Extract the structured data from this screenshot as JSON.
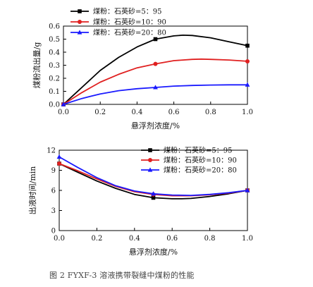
{
  "figure_caption": "图 2    FYXF-3 溶液携带裂缝中煤粉的性能",
  "chart_data": [
    {
      "type": "line",
      "title": "",
      "xlabel": "悬浮剂浓度/%",
      "ylabel": "煤粉流出量/g",
      "xlim": [
        0.0,
        1.0
      ],
      "ylim": [
        0.0,
        0.6
      ],
      "xticks": [
        "0.0",
        "0.2",
        "0.4",
        "0.6",
        "0.8",
        "1.0"
      ],
      "yticks": [
        "0.0",
        "0.1",
        "0.2",
        "0.3",
        "0.4",
        "0.5",
        "0.6"
      ],
      "legend_position": "top-left",
      "grid": false,
      "series": [
        {
          "name": "煤粉：石英砂=5：95",
          "color": "#000000",
          "marker": "square",
          "x": [
            0.0,
            0.5,
            1.0
          ],
          "y": [
            0.0,
            0.5,
            0.45
          ],
          "curve": {
            "x": [
              0,
              0.1,
              0.2,
              0.3,
              0.4,
              0.5,
              0.6,
              0.65,
              0.7,
              0.8,
              0.9,
              1.0
            ],
            "y": [
              0,
              0.13,
              0.26,
              0.36,
              0.44,
              0.5,
              0.525,
              0.53,
              0.528,
              0.51,
              0.48,
              0.45
            ]
          }
        },
        {
          "name": "煤粉：石英砂=10：90",
          "color": "#e02020",
          "marker": "circle",
          "x": [
            0.0,
            0.5,
            1.0
          ],
          "y": [
            0.0,
            0.31,
            0.33
          ],
          "curve": {
            "x": [
              0,
              0.1,
              0.2,
              0.3,
              0.4,
              0.5,
              0.6,
              0.7,
              0.75,
              0.8,
              0.9,
              1.0
            ],
            "y": [
              0,
              0.09,
              0.17,
              0.23,
              0.28,
              0.31,
              0.335,
              0.345,
              0.347,
              0.345,
              0.34,
              0.33
            ]
          }
        },
        {
          "name": "煤粉：石英砂=20：80",
          "color": "#1a1aff",
          "marker": "triangle",
          "x": [
            0.0,
            0.5,
            1.0
          ],
          "y": [
            0.0,
            0.13,
            0.15
          ],
          "curve": {
            "x": [
              0,
              0.1,
              0.2,
              0.3,
              0.4,
              0.5,
              0.6,
              0.7,
              0.8,
              0.9,
              1.0
            ],
            "y": [
              0,
              0.045,
              0.08,
              0.105,
              0.12,
              0.13,
              0.14,
              0.145,
              0.148,
              0.15,
              0.15
            ]
          }
        }
      ]
    },
    {
      "type": "line",
      "title": "",
      "xlabel": "悬浮剂浓度/%",
      "ylabel": "出液时间/min",
      "xlim": [
        0.0,
        1.0
      ],
      "ylim": [
        0,
        12
      ],
      "xticks": [
        "0.0",
        "0.2",
        "0.4",
        "0.6",
        "0.8",
        "1.0"
      ],
      "yticks": [
        "0",
        "3",
        "6",
        "9",
        "12"
      ],
      "legend_position": "top-right",
      "grid": false,
      "series": [
        {
          "name": "煤粉：石英砂=5：95",
          "color": "#000000",
          "marker": "square",
          "x": [
            0.0,
            0.5,
            1.0
          ],
          "y": [
            10.0,
            4.9,
            6.0
          ],
          "curve": {
            "x": [
              0,
              0.1,
              0.2,
              0.3,
              0.4,
              0.5,
              0.6,
              0.65,
              0.7,
              0.8,
              0.9,
              1.0
            ],
            "y": [
              10.0,
              8.7,
              7.4,
              6.3,
              5.4,
              4.9,
              4.75,
              4.75,
              4.8,
              5.1,
              5.5,
              6.0
            ]
          }
        },
        {
          "name": "煤粉：石英砂=10：90",
          "color": "#e02020",
          "marker": "circle",
          "x": [
            0.0,
            0.5,
            1.0
          ],
          "y": [
            10.0,
            5.4,
            6.0
          ],
          "curve": {
            "x": [
              0,
              0.1,
              0.2,
              0.3,
              0.4,
              0.5,
              0.6,
              0.7,
              0.8,
              0.9,
              1.0
            ],
            "y": [
              10.0,
              8.9,
              7.7,
              6.6,
              5.8,
              5.4,
              5.2,
              5.2,
              5.35,
              5.6,
              6.0
            ]
          }
        },
        {
          "name": "煤粉：石英砂=20：80",
          "color": "#1a1aff",
          "marker": "triangle",
          "x": [
            0.0,
            0.5,
            1.0
          ],
          "y": [
            11.0,
            5.5,
            6.0
          ],
          "curve": {
            "x": [
              0,
              0.1,
              0.2,
              0.3,
              0.4,
              0.5,
              0.6,
              0.7,
              0.8,
              0.9,
              1.0
            ],
            "y": [
              11.0,
              9.4,
              7.9,
              6.7,
              5.9,
              5.5,
              5.3,
              5.25,
              5.4,
              5.65,
              6.0
            ]
          }
        }
      ]
    }
  ]
}
